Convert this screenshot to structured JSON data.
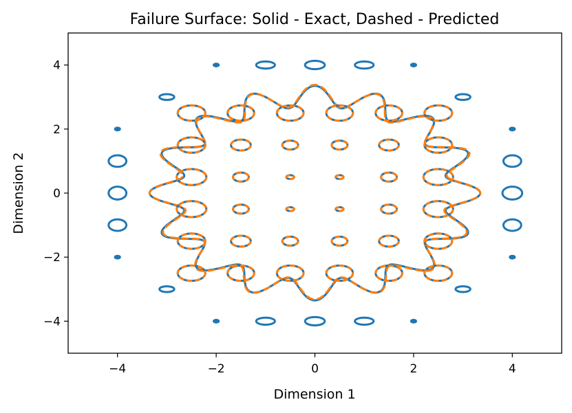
{
  "chart_data": {
    "type": "contour",
    "title": "Failure Surface: Solid - Exact, Dashed - Predicted",
    "xlabel": "Dimension 1",
    "ylabel": "Dimension 2",
    "xlim": [
      -5,
      5
    ],
    "ylim": [
      -5,
      5
    ],
    "xticks": [
      -4,
      -2,
      0,
      2,
      4
    ],
    "yticks": [
      -4,
      -2,
      0,
      2,
      4
    ],
    "xtick_labels": [
      "−4",
      "−2",
      "0",
      "2",
      "4"
    ],
    "ytick_labels": [
      "−4",
      "−2",
      "0",
      "2",
      "4"
    ],
    "grid": false,
    "series": [
      {
        "style": "solid",
        "color": "#1f77b4"
      },
      {
        "style": "dashed",
        "color": "#ff7f0e"
      }
    ],
    "exact_boundary": {
      "radius_range": [
        2.7,
        3.35
      ]
    },
    "exact_islands": [
      {
        "x": 0,
        "y": 4,
        "rx": 0.2,
        "ry": 0.13
      },
      {
        "x": -1,
        "y": 4,
        "rx": 0.19,
        "ry": 0.11
      },
      {
        "x": 1,
        "y": 4,
        "rx": 0.19,
        "ry": 0.11
      },
      {
        "x": -2,
        "y": 4,
        "rx": 0.05,
        "ry": 0.04
      },
      {
        "x": 2,
        "y": 4,
        "rx": 0.05,
        "ry": 0.04
      },
      {
        "x": 0,
        "y": -4,
        "rx": 0.2,
        "ry": 0.13
      },
      {
        "x": -1,
        "y": -4,
        "rx": 0.19,
        "ry": 0.11
      },
      {
        "x": 1,
        "y": -4,
        "rx": 0.19,
        "ry": 0.11
      },
      {
        "x": -2,
        "y": -4,
        "rx": 0.05,
        "ry": 0.04
      },
      {
        "x": 2,
        "y": -4,
        "rx": 0.05,
        "ry": 0.04
      },
      {
        "x": -4,
        "y": 0,
        "rx": 0.18,
        "ry": 0.2
      },
      {
        "x": -4,
        "y": 1,
        "rx": 0.18,
        "ry": 0.18
      },
      {
        "x": -4,
        "y": -1,
        "rx": 0.18,
        "ry": 0.18
      },
      {
        "x": -4,
        "y": 2,
        "rx": 0.05,
        "ry": 0.04
      },
      {
        "x": -4,
        "y": -2,
        "rx": 0.05,
        "ry": 0.04
      },
      {
        "x": 4,
        "y": 0,
        "rx": 0.2,
        "ry": 0.2
      },
      {
        "x": 4,
        "y": 1,
        "rx": 0.18,
        "ry": 0.18
      },
      {
        "x": 4,
        "y": -1,
        "rx": 0.18,
        "ry": 0.18
      },
      {
        "x": 4,
        "y": 2,
        "rx": 0.05,
        "ry": 0.04
      },
      {
        "x": 4,
        "y": -2,
        "rx": 0.05,
        "ry": 0.04
      },
      {
        "x": -3,
        "y": 3,
        "rx": 0.15,
        "ry": 0.09
      },
      {
        "x": 3,
        "y": 3,
        "rx": 0.15,
        "ry": 0.09
      },
      {
        "x": -3,
        "y": -3,
        "rx": 0.15,
        "ry": 0.09
      },
      {
        "x": 3,
        "y": -3,
        "rx": 0.15,
        "ry": 0.09
      }
    ],
    "inner_islands": [
      {
        "x": -2.5,
        "y": 2.5,
        "rx": 0.28,
        "ry": 0.24
      },
      {
        "x": -1.5,
        "y": 2.5,
        "rx": 0.27,
        "ry": 0.24
      },
      {
        "x": -0.5,
        "y": 2.5,
        "rx": 0.27,
        "ry": 0.24
      },
      {
        "x": 0.5,
        "y": 2.5,
        "rx": 0.27,
        "ry": 0.24
      },
      {
        "x": 1.5,
        "y": 2.5,
        "rx": 0.27,
        "ry": 0.24
      },
      {
        "x": 2.5,
        "y": 2.5,
        "rx": 0.28,
        "ry": 0.24
      },
      {
        "x": -2.5,
        "y": 1.5,
        "rx": 0.28,
        "ry": 0.24
      },
      {
        "x": -1.5,
        "y": 1.5,
        "rx": 0.2,
        "ry": 0.17
      },
      {
        "x": -0.5,
        "y": 1.5,
        "rx": 0.16,
        "ry": 0.14
      },
      {
        "x": 0.5,
        "y": 1.5,
        "rx": 0.16,
        "ry": 0.14
      },
      {
        "x": 1.5,
        "y": 1.5,
        "rx": 0.2,
        "ry": 0.17
      },
      {
        "x": 2.5,
        "y": 1.5,
        "rx": 0.28,
        "ry": 0.24
      },
      {
        "x": -2.5,
        "y": 0.5,
        "rx": 0.3,
        "ry": 0.25
      },
      {
        "x": -1.5,
        "y": 0.5,
        "rx": 0.16,
        "ry": 0.14
      },
      {
        "x": -0.5,
        "y": 0.5,
        "rx": 0.08,
        "ry": 0.06
      },
      {
        "x": 0.5,
        "y": 0.5,
        "rx": 0.08,
        "ry": 0.06
      },
      {
        "x": 1.5,
        "y": 0.5,
        "rx": 0.16,
        "ry": 0.14
      },
      {
        "x": 2.5,
        "y": 0.5,
        "rx": 0.3,
        "ry": 0.25
      },
      {
        "x": -2.5,
        "y": -0.5,
        "rx": 0.3,
        "ry": 0.25
      },
      {
        "x": -1.5,
        "y": -0.5,
        "rx": 0.16,
        "ry": 0.14
      },
      {
        "x": -0.5,
        "y": -0.5,
        "rx": 0.08,
        "ry": 0.06
      },
      {
        "x": 0.5,
        "y": -0.5,
        "rx": 0.08,
        "ry": 0.06
      },
      {
        "x": 1.5,
        "y": -0.5,
        "rx": 0.16,
        "ry": 0.14
      },
      {
        "x": 2.5,
        "y": -0.5,
        "rx": 0.3,
        "ry": 0.25
      },
      {
        "x": -2.5,
        "y": -1.5,
        "rx": 0.28,
        "ry": 0.24
      },
      {
        "x": -1.5,
        "y": -1.5,
        "rx": 0.2,
        "ry": 0.17
      },
      {
        "x": -0.5,
        "y": -1.5,
        "rx": 0.16,
        "ry": 0.14
      },
      {
        "x": 0.5,
        "y": -1.5,
        "rx": 0.16,
        "ry": 0.14
      },
      {
        "x": 1.5,
        "y": -1.5,
        "rx": 0.2,
        "ry": 0.17
      },
      {
        "x": 2.5,
        "y": -1.5,
        "rx": 0.28,
        "ry": 0.24
      },
      {
        "x": -2.5,
        "y": -2.5,
        "rx": 0.28,
        "ry": 0.24
      },
      {
        "x": -1.5,
        "y": -2.5,
        "rx": 0.27,
        "ry": 0.24
      },
      {
        "x": -0.5,
        "y": -2.5,
        "rx": 0.27,
        "ry": 0.24
      },
      {
        "x": 0.5,
        "y": -2.5,
        "rx": 0.27,
        "ry": 0.24
      },
      {
        "x": 1.5,
        "y": -2.5,
        "rx": 0.27,
        "ry": 0.24
      },
      {
        "x": 2.5,
        "y": -2.5,
        "rx": 0.28,
        "ry": 0.24
      }
    ]
  }
}
